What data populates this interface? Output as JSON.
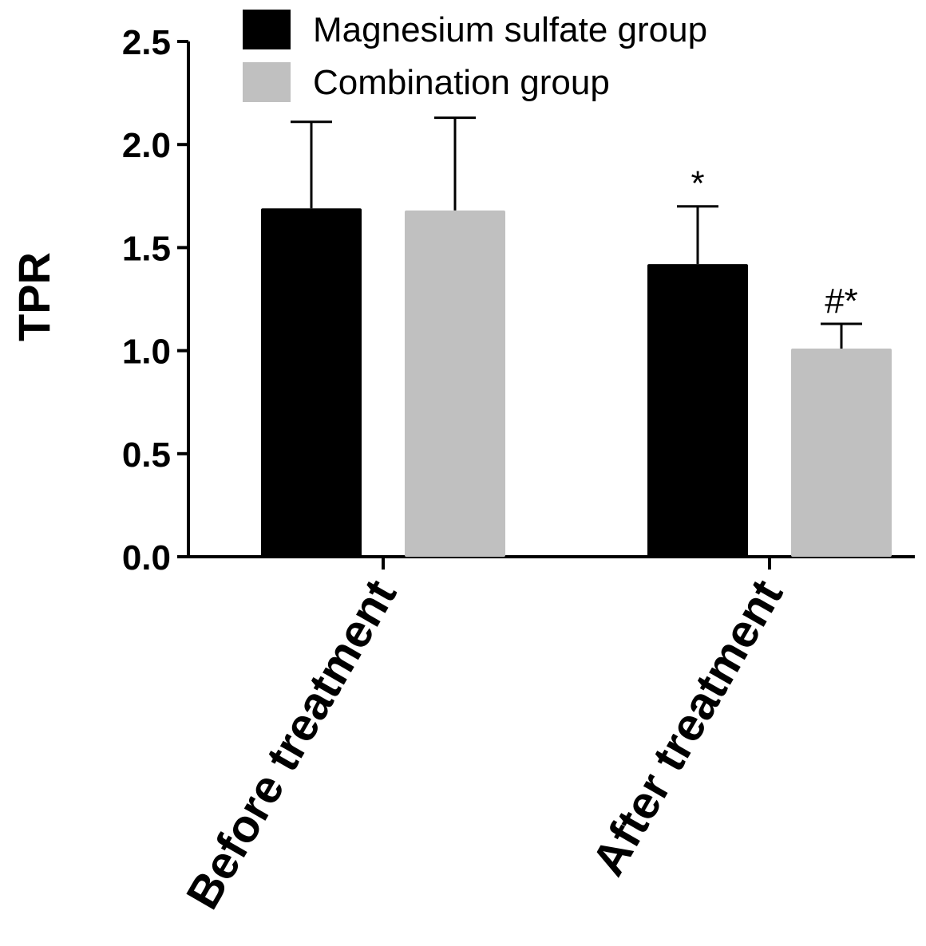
{
  "chart_data": {
    "type": "bar",
    "ylabel": "TPR",
    "ylim": [
      0,
      2.5
    ],
    "yticks": [
      "0.0",
      "0.5",
      "1.0",
      "1.5",
      "2.0",
      "2.5"
    ],
    "categories": [
      "Before treatment",
      "After treatment"
    ],
    "series": [
      {
        "name": "Magnesium sulfate group",
        "color": "#000000",
        "values": [
          1.69,
          1.42
        ],
        "errors": [
          0.42,
          0.28
        ],
        "annotations": [
          "",
          "*"
        ]
      },
      {
        "name": "Combination group",
        "color": "#c0c0c0",
        "values": [
          1.68,
          1.01
        ],
        "errors": [
          0.45,
          0.12
        ],
        "annotations": [
          "",
          "#*"
        ]
      }
    ],
    "legend_position": "top-center",
    "grid": false
  }
}
